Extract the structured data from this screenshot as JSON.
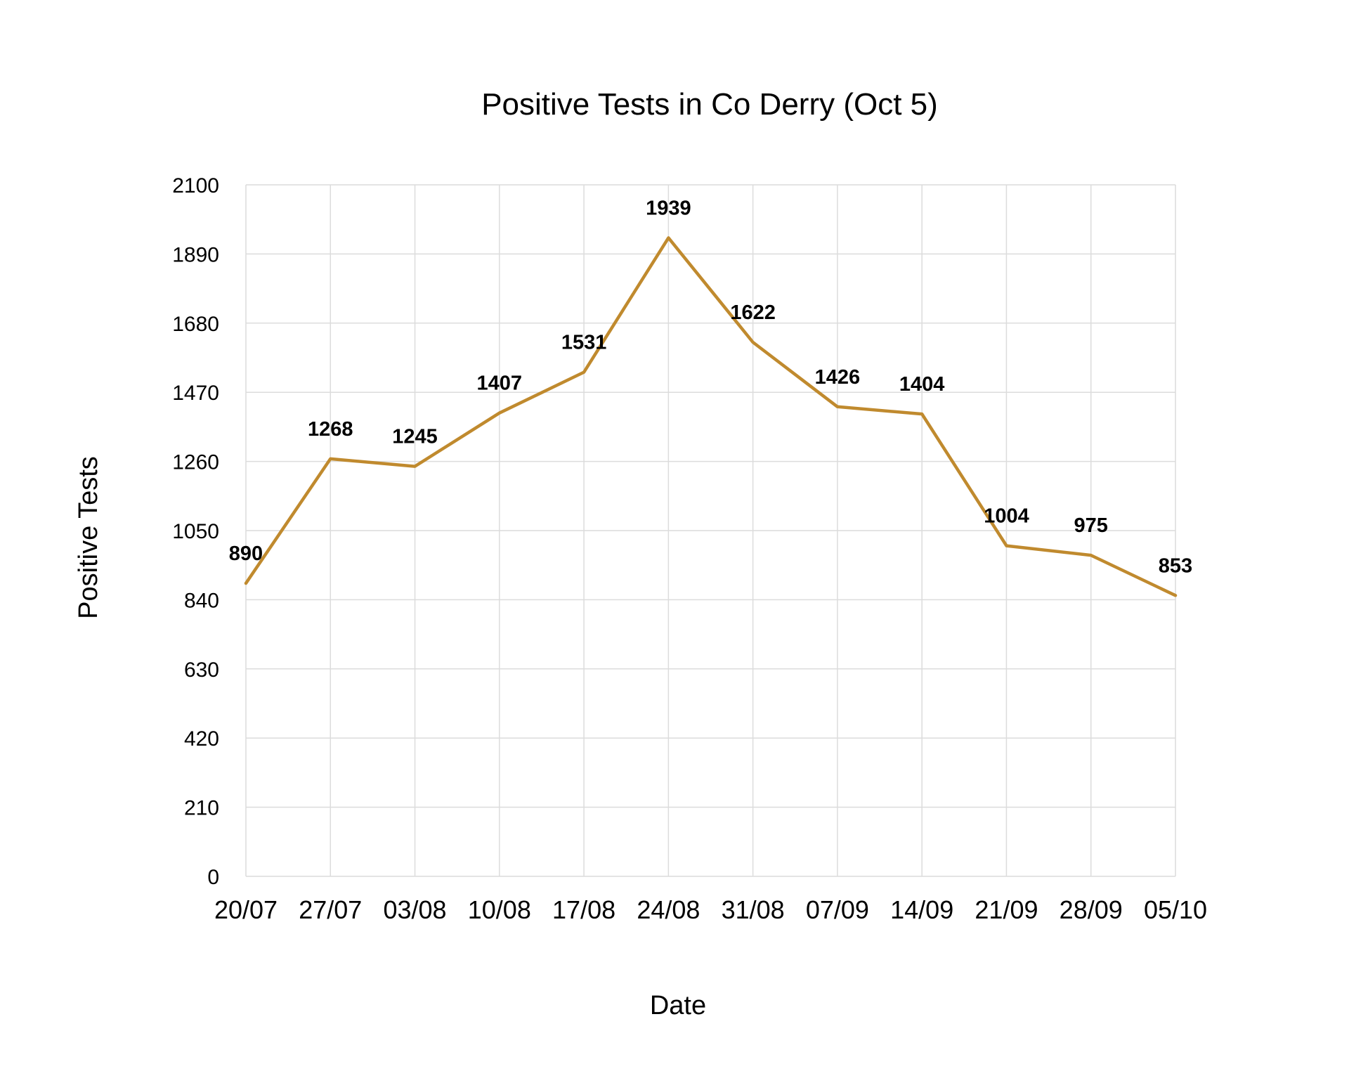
{
  "chart_data": {
    "type": "line",
    "title": "Positive Tests in Co Derry (Oct 5)",
    "xlabel": "Date",
    "ylabel": "Positive Tests",
    "categories": [
      "20/07",
      "27/07",
      "03/08",
      "10/08",
      "17/08",
      "24/08",
      "31/08",
      "07/09",
      "14/09",
      "21/09",
      "28/09",
      "05/10"
    ],
    "series": [
      {
        "values": [
          890,
          1268,
          1245,
          1407,
          1531,
          1939,
          1622,
          1426,
          1404,
          1004,
          975,
          853
        ]
      }
    ],
    "ylim": [
      0,
      2100
    ],
    "yticks": [
      0,
      210,
      420,
      630,
      840,
      1050,
      1260,
      1470,
      1680,
      1890,
      2100
    ],
    "grid": true,
    "data_labels": true,
    "line_color": "#c08a2e"
  }
}
